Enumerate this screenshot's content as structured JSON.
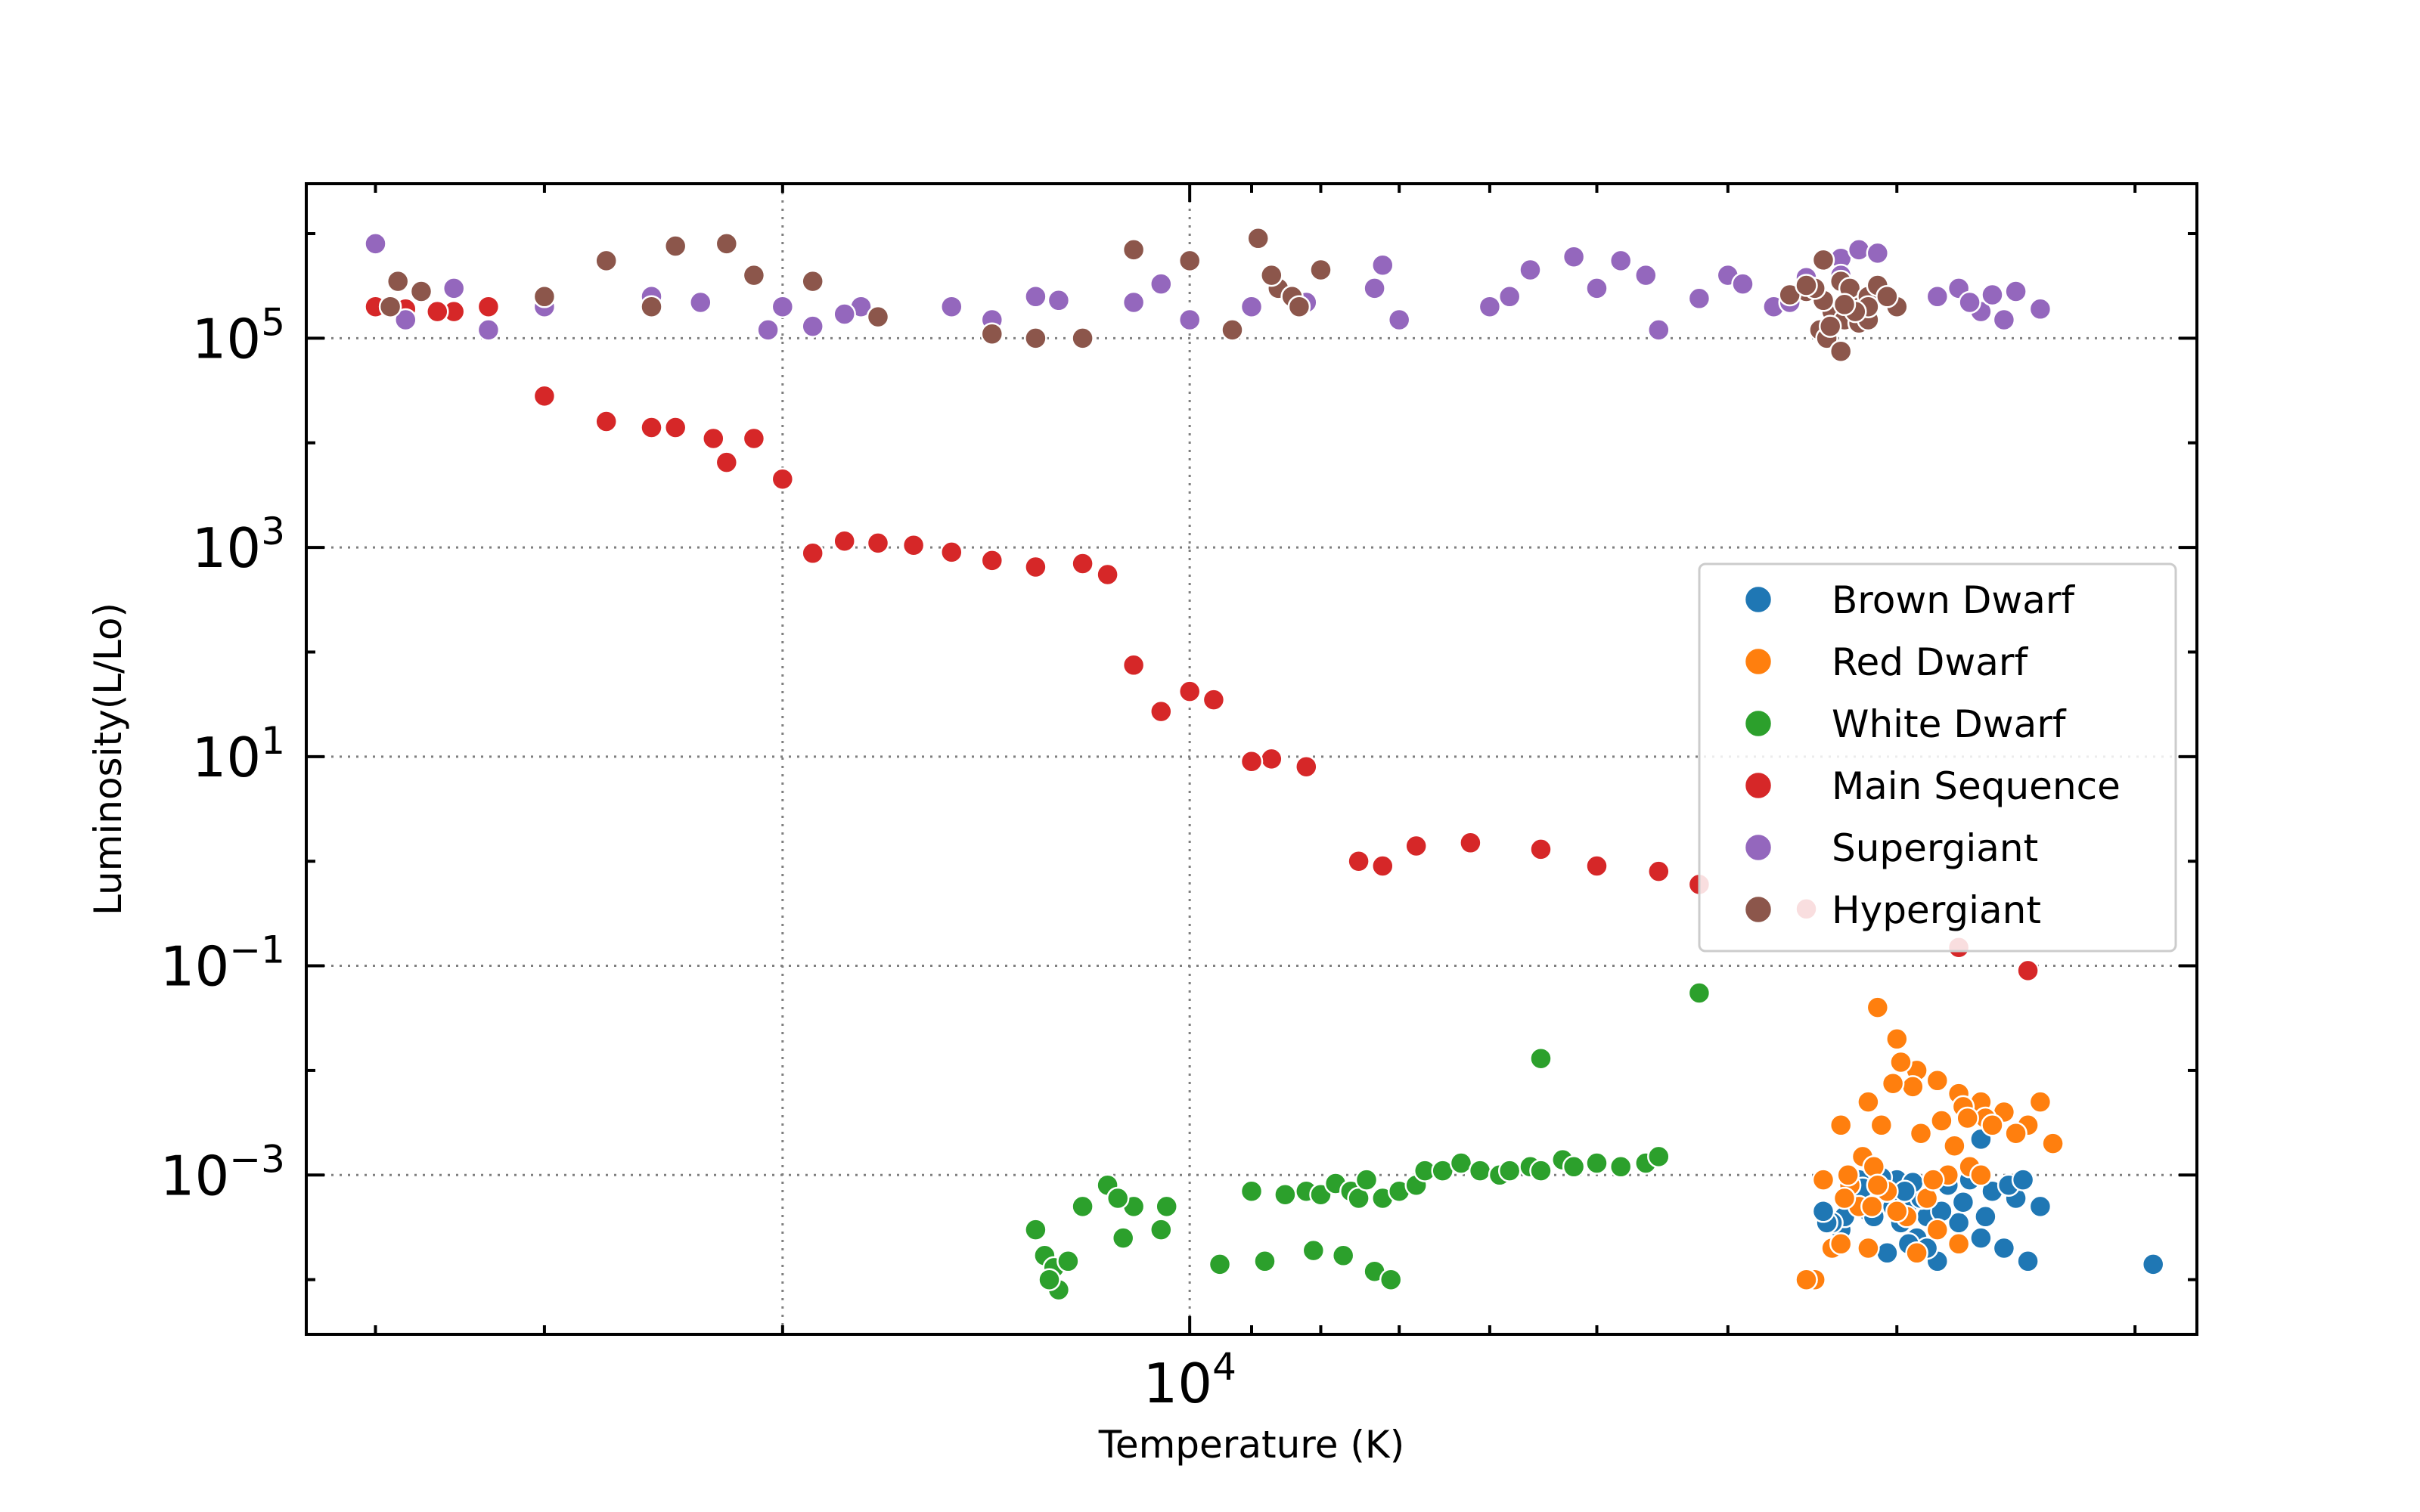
{
  "chart_data": {
    "type": "scatter",
    "xlabel": "Temperature (K)",
    "ylabel": "Luminosity(L/Lo)",
    "xscale": "log",
    "yscale": "log",
    "xaxis_inverted": true,
    "xlim": [
      45000,
      1800
    ],
    "ylim": [
      3e-05,
      3000000
    ],
    "grid": true,
    "legend_position": "center-right",
    "x_tick_labels": [
      {
        "value": 10000,
        "base": "10",
        "exp": "4"
      }
    ],
    "y_tick_labels": [
      {
        "value": 100000,
        "base": "10",
        "exp": "5"
      },
      {
        "value": 1000,
        "base": "10",
        "exp": "3"
      },
      {
        "value": 10,
        "base": "10",
        "exp": "1"
      },
      {
        "value": 0.1,
        "base": "10",
        "exp": "−1"
      },
      {
        "value": 0.001,
        "base": "10",
        "exp": "−3"
      }
    ],
    "series": [
      {
        "name": "Brown Dwarf",
        "color": "#1f77b4",
        "points": [
          [
            3250,
            0.00055
          ],
          [
            3150,
            0.00045
          ],
          [
            3050,
            0.0007
          ],
          [
            2950,
            0.0005
          ],
          [
            2850,
            0.0004
          ],
          [
            2900,
            0.00025
          ],
          [
            2800,
            0.00015
          ],
          [
            2750,
            0.0008
          ],
          [
            2700,
            0.00035
          ],
          [
            2650,
            0.0009
          ],
          [
            2600,
            0.00025
          ],
          [
            2550,
            0.0007
          ],
          [
            2500,
            0.0002
          ],
          [
            2450,
            0.0006
          ],
          [
            2400,
            0.00015
          ],
          [
            2350,
            0.0005
          ],
          [
            3000,
            0.0009
          ],
          [
            3100,
            0.0006
          ],
          [
            2980,
            0.00035
          ],
          [
            2880,
            0.0006
          ],
          [
            3200,
            0.0009
          ],
          [
            3300,
            0.0003
          ],
          [
            3050,
            0.00018
          ],
          [
            2920,
            0.00085
          ],
          [
            2780,
            0.00045
          ],
          [
            2680,
            0.00055
          ],
          [
            2580,
            0.0004
          ],
          [
            2480,
            0.0008
          ],
          [
            2420,
            0.0009
          ],
          [
            3180,
            0.00075
          ],
          [
            3120,
            0.0004
          ],
          [
            3020,
            0.0005
          ],
          [
            3280,
            0.0004
          ],
          [
            3350,
            0.00035
          ],
          [
            2940,
            0.00022
          ],
          [
            2850,
            0.0002
          ],
          [
            2960,
            0.0007
          ],
          [
            3080,
            0.00095
          ],
          [
            3380,
            0.00035
          ],
          [
            3400,
            0.00045
          ],
          [
            2600,
            0.0022
          ],
          [
            1939,
            0.00014
          ]
        ]
      },
      {
        "name": "Red Dwarf",
        "color": "#ff7f0e",
        "points": [
          [
            3100,
            0.04
          ],
          [
            3000,
            0.02
          ],
          [
            2900,
            0.01
          ],
          [
            2800,
            0.008
          ],
          [
            2700,
            0.006
          ],
          [
            2600,
            0.005
          ],
          [
            2500,
            0.004
          ],
          [
            2400,
            0.003
          ],
          [
            2300,
            0.002
          ],
          [
            3200,
            0.0005
          ],
          [
            3250,
            0.0008
          ],
          [
            3050,
            0.0007
          ],
          [
            2950,
            0.0004
          ],
          [
            2850,
            0.0006
          ],
          [
            2750,
            0.001
          ],
          [
            2650,
            0.0012
          ],
          [
            3300,
            0.003
          ],
          [
            3150,
            0.005
          ],
          [
            2920,
            0.007
          ],
          [
            3020,
            0.0075
          ],
          [
            2980,
            0.012
          ],
          [
            3080,
            0.003
          ],
          [
            2880,
            0.0025
          ],
          [
            2780,
            0.0033
          ],
          [
            2680,
            0.0045
          ],
          [
            2580,
            0.0035
          ],
          [
            3180,
            0.0015
          ],
          [
            3260,
            0.001
          ],
          [
            3120,
            0.0012
          ],
          [
            2820,
            0.0009
          ],
          [
            2720,
            0.0019
          ],
          [
            2660,
            0.0035
          ],
          [
            3130,
            0.0005
          ],
          [
            2900,
            0.00018
          ],
          [
            3280,
            0.0006
          ],
          [
            2550,
            0.003
          ],
          [
            2450,
            0.0025
          ],
          [
            2350,
            0.005
          ],
          [
            2600,
            0.001
          ],
          [
            2700,
            0.00022
          ],
          [
            2800,
            0.0003
          ],
          [
            3000,
            0.00045
          ],
          [
            3350,
            0.0002
          ],
          [
            3100,
            0.0008
          ],
          [
            3300,
            0.00022
          ],
          [
            3400,
            0.0009
          ],
          [
            3450,
            0.0001
          ],
          [
            3500,
            0.0001
          ],
          [
            3500,
            0.0001
          ],
          [
            3150,
            0.0002
          ]
        ]
      },
      {
        "name": "White Dwarf",
        "color": "#2ca02c",
        "points": [
          [
            9500,
            0.00014
          ],
          [
            9000,
            0.0007
          ],
          [
            8800,
            0.00015
          ],
          [
            8500,
            0.00065
          ],
          [
            8200,
            0.0007
          ],
          [
            8000,
            0.00065
          ],
          [
            7800,
            0.00083
          ],
          [
            7600,
            0.0007
          ],
          [
            7500,
            0.0006
          ],
          [
            7400,
            0.0009
          ],
          [
            7200,
            0.0006
          ],
          [
            7000,
            0.0007
          ],
          [
            6800,
            0.0008
          ],
          [
            6700,
            0.0011
          ],
          [
            6500,
            0.0011
          ],
          [
            6300,
            0.0013
          ],
          [
            6100,
            0.0011
          ],
          [
            5900,
            0.001
          ],
          [
            5800,
            0.0011
          ],
          [
            5600,
            0.0012
          ],
          [
            5500,
            0.0011
          ],
          [
            5300,
            0.0014
          ],
          [
            5200,
            0.0012
          ],
          [
            5000,
            0.0013
          ],
          [
            4800,
            0.0012
          ],
          [
            4600,
            0.0013
          ],
          [
            4500,
            0.0015
          ],
          [
            4200,
            0.055
          ],
          [
            5500,
            0.013
          ],
          [
            13000,
            0.0003
          ],
          [
            12800,
            0.00017
          ],
          [
            12600,
            0.00013
          ],
          [
            12500,
            8e-05
          ],
          [
            12000,
            0.0005
          ],
          [
            11500,
            0.0008
          ],
          [
            11000,
            0.0005
          ],
          [
            10500,
            0.0003
          ],
          [
            11300,
            0.0006
          ],
          [
            11200,
            0.00025
          ],
          [
            10400,
            0.0005
          ],
          [
            8100,
            0.00019
          ],
          [
            7700,
            0.00017
          ],
          [
            7300,
            0.00012
          ],
          [
            7100,
            0.0001
          ],
          [
            12700,
            0.0001
          ],
          [
            12300,
            0.00015
          ]
        ]
      },
      {
        "name": "Main Sequence",
        "color": "#d62728",
        "points": [
          [
            2400,
            0.09
          ],
          [
            2700,
            0.15
          ],
          [
            3500,
            0.35
          ],
          [
            4200,
            0.6
          ],
          [
            4500,
            0.8
          ],
          [
            5000,
            0.9
          ],
          [
            5500,
            1.3
          ],
          [
            6200,
            1.5
          ],
          [
            6800,
            1.4
          ],
          [
            7200,
            0.9
          ],
          [
            7500,
            1.0
          ],
          [
            8200,
            8
          ],
          [
            8700,
            9.5
          ],
          [
            9000,
            9
          ],
          [
            9600,
            35
          ],
          [
            10000,
            42
          ],
          [
            10500,
            27
          ],
          [
            11000,
            75
          ],
          [
            11500,
            550
          ],
          [
            12000,
            700
          ],
          [
            13000,
            650
          ],
          [
            14000,
            750
          ],
          [
            15000,
            900
          ],
          [
            16000,
            1050
          ],
          [
            17000,
            1100
          ],
          [
            18000,
            1150
          ],
          [
            19000,
            880
          ],
          [
            20000,
            4500
          ],
          [
            21000,
            11000
          ],
          [
            22000,
            6500
          ],
          [
            22500,
            11000
          ],
          [
            24000,
            14000
          ],
          [
            25000,
            14000
          ],
          [
            27000,
            16000
          ],
          [
            30000,
            28000
          ],
          [
            33000,
            200000
          ],
          [
            35000,
            180000
          ],
          [
            38000,
            190000
          ],
          [
            40000,
            200000
          ],
          [
            36000,
            180000
          ]
        ]
      },
      {
        "name": "Supergiant",
        "color": "#9467bd",
        "points": [
          [
            2800,
            250000
          ],
          [
            2600,
            180000
          ],
          [
            3000,
            200000
          ],
          [
            2500,
            150000
          ],
          [
            2700,
            300000
          ],
          [
            2650,
            220000
          ],
          [
            2550,
            260000
          ],
          [
            2450,
            280000
          ],
          [
            2350,
            190000
          ],
          [
            6000,
            200000
          ],
          [
            5800,
            250000
          ],
          [
            5600,
            450000
          ],
          [
            5200,
            600000
          ],
          [
            5000,
            300000
          ],
          [
            4800,
            550000
          ],
          [
            4600,
            400000
          ],
          [
            4500,
            120000
          ],
          [
            4200,
            240000
          ],
          [
            4000,
            400000
          ],
          [
            3900,
            330000
          ],
          [
            3700,
            200000
          ],
          [
            3600,
            220000
          ],
          [
            3500,
            380000
          ],
          [
            3300,
            580000
          ],
          [
            3200,
            700000
          ],
          [
            3100,
            650000
          ],
          [
            3300,
            400000
          ],
          [
            3400,
            230000
          ],
          [
            7000,
            150000
          ],
          [
            7200,
            500000
          ],
          [
            7300,
            300000
          ],
          [
            8200,
            220000
          ],
          [
            9000,
            200000
          ],
          [
            10000,
            150000
          ],
          [
            10500,
            330000
          ],
          [
            11000,
            220000
          ],
          [
            12500,
            230000
          ],
          [
            13000,
            250000
          ],
          [
            14000,
            150000
          ],
          [
            15000,
            200000
          ],
          [
            17500,
            200000
          ],
          [
            20000,
            200000
          ],
          [
            25000,
            250000
          ],
          [
            30000,
            200000
          ],
          [
            35000,
            300000
          ],
          [
            38000,
            150000
          ],
          [
            40000,
            800000
          ],
          [
            20500,
            120000
          ],
          [
            19000,
            130000
          ],
          [
            18000,
            170000
          ],
          [
            23000,
            220000
          ],
          [
            33000,
            120000
          ]
        ]
      },
      {
        "name": "Hypergiant",
        "color": "#8c564b",
        "points": [
          [
            3400,
            560000
          ],
          [
            3500,
            300000
          ],
          [
            3300,
            350000
          ],
          [
            3200,
            250000
          ],
          [
            3300,
            200000
          ],
          [
            3350,
            180000
          ],
          [
            3280,
            150000
          ],
          [
            3400,
            230000
          ],
          [
            3250,
            300000
          ],
          [
            3150,
            250000
          ],
          [
            3000,
            200000
          ],
          [
            3200,
            140000
          ],
          [
            3500,
            280000
          ],
          [
            3420,
            120000
          ],
          [
            3380,
            100000
          ],
          [
            3360,
            130000
          ],
          [
            3150,
            150000
          ],
          [
            3300,
            75000
          ],
          [
            3100,
            320000
          ],
          [
            3600,
            260000
          ],
          [
            3450,
            300000
          ],
          [
            3150,
            200000
          ],
          [
            3220,
            180000
          ],
          [
            3500,
            320000
          ],
          [
            3050,
            250000
          ],
          [
            3280,
            210000
          ],
          [
            9300,
            120000
          ],
          [
            8600,
            300000
          ],
          [
            8700,
            400000
          ],
          [
            8400,
            250000
          ],
          [
            8000,
            450000
          ],
          [
            8300,
            200000
          ],
          [
            10000,
            550000
          ],
          [
            11000,
            700000
          ],
          [
            12000,
            100000
          ],
          [
            13000,
            100000
          ],
          [
            14000,
            110000
          ],
          [
            17000,
            160000
          ],
          [
            19000,
            350000
          ],
          [
            22000,
            800000
          ],
          [
            24000,
            760000
          ],
          [
            27000,
            550000
          ],
          [
            30000,
            250000
          ],
          [
            38500,
            350000
          ],
          [
            37000,
            280000
          ],
          [
            39000,
            200000
          ],
          [
            25000,
            200000
          ],
          [
            21000,
            400000
          ],
          [
            8900,
            900000
          ]
        ]
      }
    ]
  }
}
